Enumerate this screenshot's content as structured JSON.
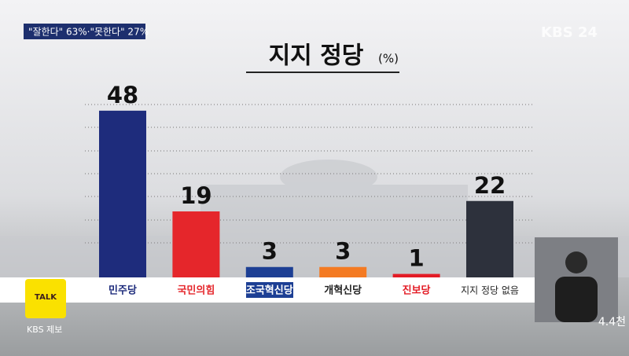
{
  "header": {
    "caption": "\"잘한다\" 63%·\"못한다\" 27%",
    "logo": "KBS 24"
  },
  "chart_data": {
    "type": "bar",
    "title": "지지 정당",
    "unit": "(%)",
    "categories": [
      "민주당",
      "국민의힘",
      "조국혁신당",
      "개혁신당",
      "진보당",
      "지지 정당 없음"
    ],
    "values": [
      48,
      19,
      3,
      3,
      1,
      22
    ],
    "colors": [
      "#1e2c7c",
      "#e5262b",
      "#1d3f94",
      "#f47a22",
      "#e31b25",
      "#2d313c"
    ],
    "label_colors": [
      "#1e2c7c",
      "#e5262b",
      "#ffffff",
      "#222222",
      "#e31b25",
      "#222222"
    ]
  },
  "overlay": {
    "kakao": "TALK",
    "tip": "KBS 제보",
    "views": "4.4천"
  }
}
